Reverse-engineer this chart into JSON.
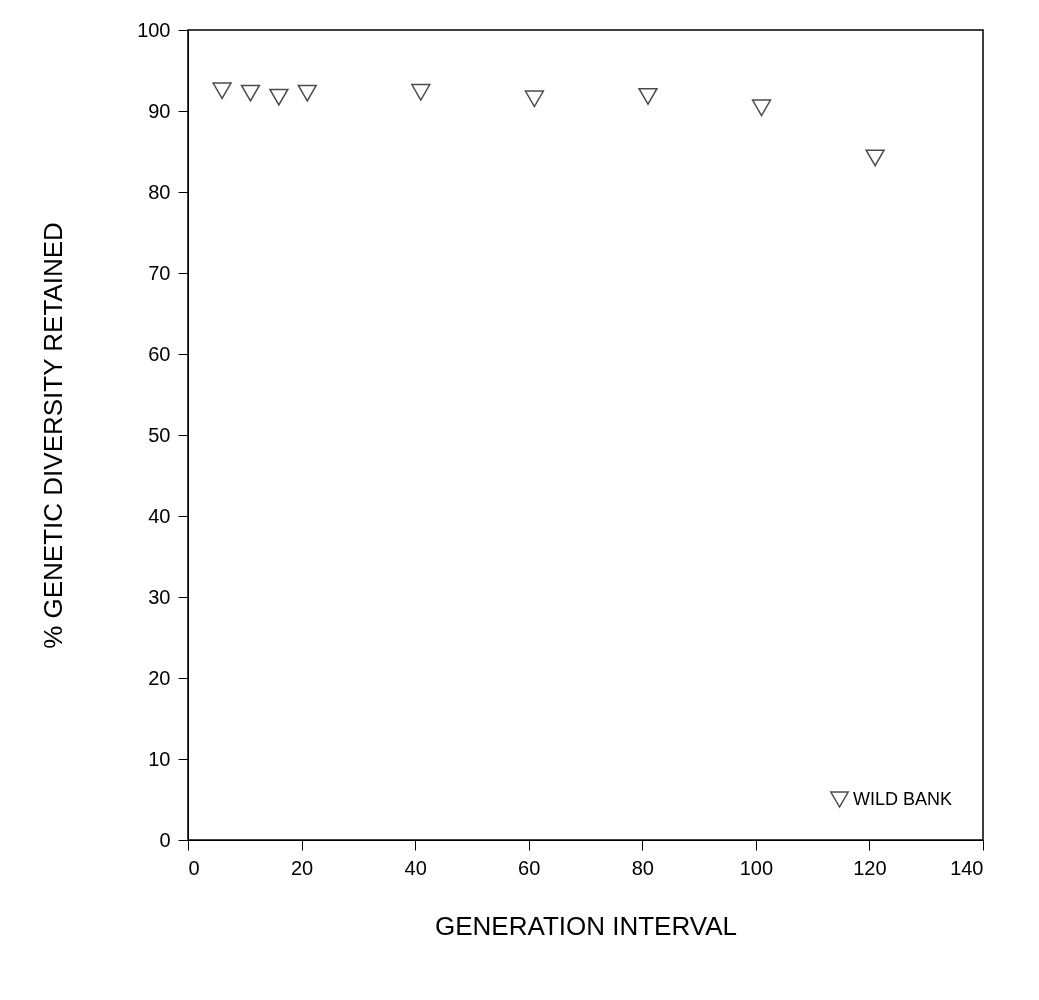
{
  "chart_data": {
    "type": "scatter",
    "xlabel": "GENERATION INTERVAL",
    "ylabel": "% GENETIC DIVERSITY RETAINED",
    "x": [
      6,
      11,
      16,
      21,
      41,
      61,
      81,
      101,
      121
    ],
    "series": [
      {
        "name": "WILD BANK",
        "color": "#000000",
        "values": [
          92.5,
          92.2,
          91.7,
          92.2,
          92.3,
          91.5,
          91.8,
          90.4,
          84.2
        ]
      }
    ],
    "xlim": [
      0,
      140
    ],
    "xticks": [
      0,
      20,
      40,
      60,
      80,
      100,
      120,
      140
    ],
    "ylim": [
      0,
      100
    ],
    "yticks": [
      0,
      10,
      20,
      30,
      40,
      50,
      60,
      70,
      80,
      90,
      100
    ],
    "marker": "triangle-down",
    "grid": false,
    "legend": "bottom right"
  }
}
